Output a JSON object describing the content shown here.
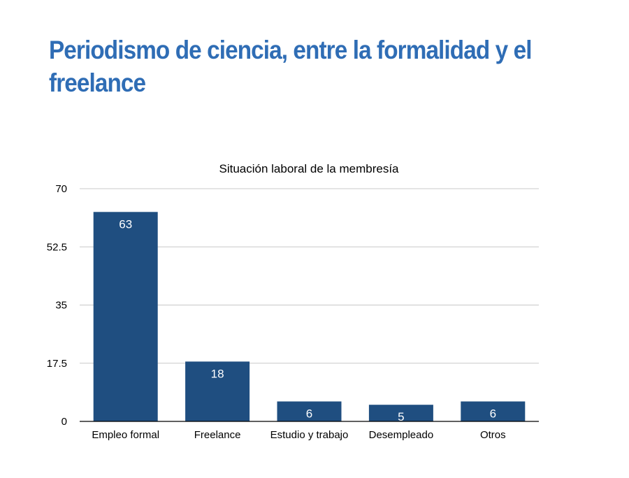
{
  "slide_title": "Periodismo de ciencia, entre la formalidad y el freelance",
  "chart_data": {
    "type": "bar",
    "title": "Situación laboral de la membresía",
    "categories": [
      "Empleo formal",
      "Freelance",
      "Estudio y trabajo",
      "Desempleado",
      "Otros"
    ],
    "values": [
      63,
      18,
      6,
      5,
      6
    ],
    "yticks": [
      "0",
      "17.5",
      "35",
      "52.5",
      "70"
    ],
    "ylim": [
      0,
      70
    ],
    "xlabel": "",
    "ylabel": "",
    "grid": true,
    "bar_color": "#1f4e80"
  }
}
